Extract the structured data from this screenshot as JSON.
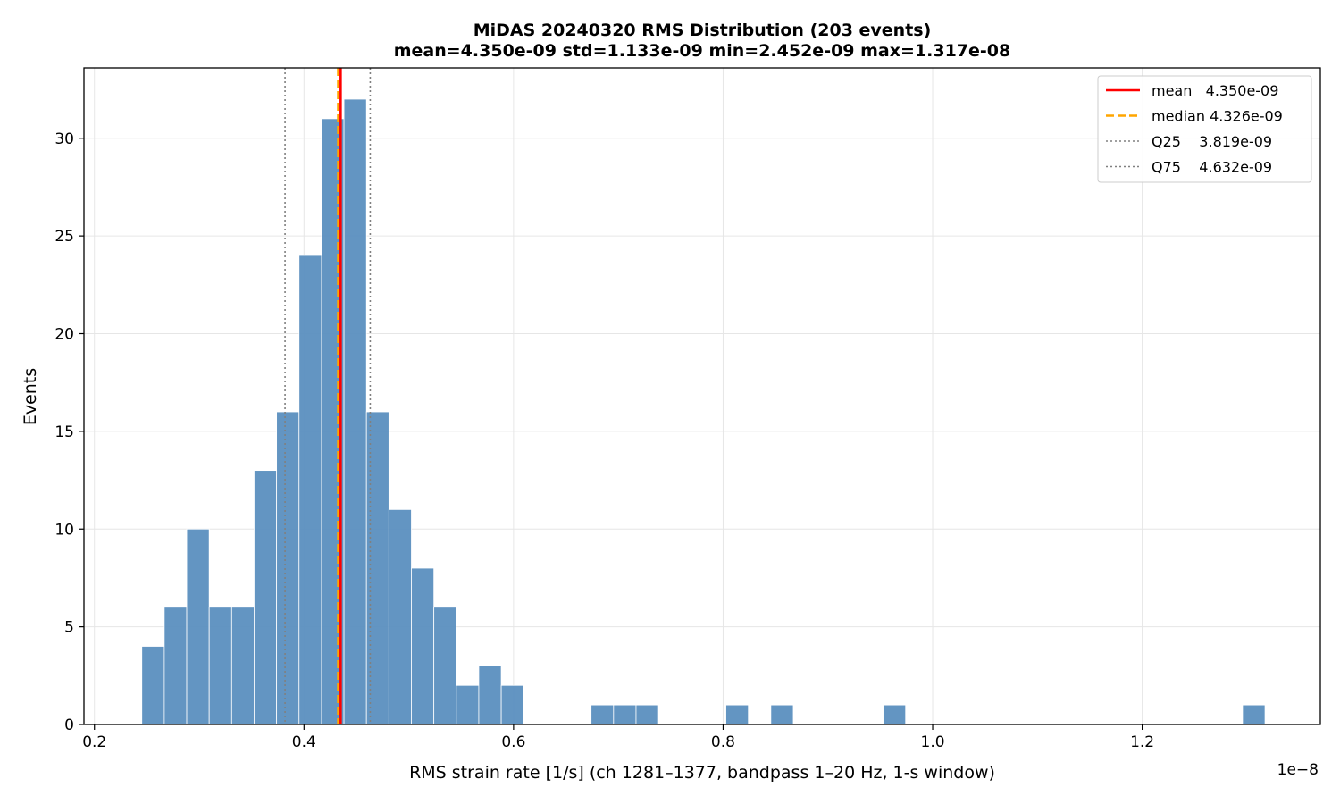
{
  "chart_data": {
    "type": "bar",
    "subtype": "histogram",
    "title": "MiDAS 20240320  RMS Distribution  (203 events)",
    "subtitle": "mean=4.350e-09  std=1.133e-09  min=2.452e-09  max=1.317e-08",
    "xlabel": "RMS strain rate [1/s]  (ch 1281–1377, bandpass 1–20 Hz, 1-s window)",
    "ylabel": "Events",
    "x_offset_label": "1e−8",
    "xlim": [
      0.19,
      1.37
    ],
    "ylim": [
      0,
      33.6
    ],
    "x_ticks": [
      0.2,
      0.4,
      0.6,
      0.8,
      1.0,
      1.2
    ],
    "x_tick_labels": [
      "0.2",
      "0.4",
      "0.6",
      "0.8",
      "1.0",
      "1.2"
    ],
    "y_ticks": [
      0,
      5,
      10,
      15,
      20,
      25,
      30
    ],
    "y_tick_labels": [
      "0",
      "5",
      "10",
      "15",
      "20",
      "25",
      "30"
    ],
    "grid": true,
    "bar_color": "#5b8fbf",
    "bin_start": 0.2452,
    "bin_width": 0.02144,
    "counts": [
      4,
      6,
      10,
      6,
      6,
      13,
      16,
      24,
      31,
      32,
      16,
      11,
      8,
      6,
      2,
      3,
      2,
      0,
      0,
      0,
      1,
      1,
      1,
      0,
      0,
      0,
      1,
      0,
      1,
      0,
      0,
      0,
      0,
      1,
      0,
      0,
      0,
      0,
      0,
      0,
      0,
      0,
      0,
      0,
      0,
      0,
      0,
      0,
      0,
      1
    ],
    "vlines": [
      {
        "name": "mean",
        "value": 0.435,
        "legend": "mean   4.350e-09",
        "color": "#ff0000",
        "style": "solid"
      },
      {
        "name": "median",
        "value": 0.4326,
        "legend": "median 4.326e-09",
        "color": "#ffa500",
        "style": "dashed"
      },
      {
        "name": "Q25",
        "value": 0.3819,
        "legend": "Q25    3.819e-09",
        "color": "#808080",
        "style": "dotted"
      },
      {
        "name": "Q75",
        "value": 0.4632,
        "legend": "Q75    4.632e-09",
        "color": "#808080",
        "style": "dotted"
      }
    ],
    "legend_position": "top-right"
  }
}
